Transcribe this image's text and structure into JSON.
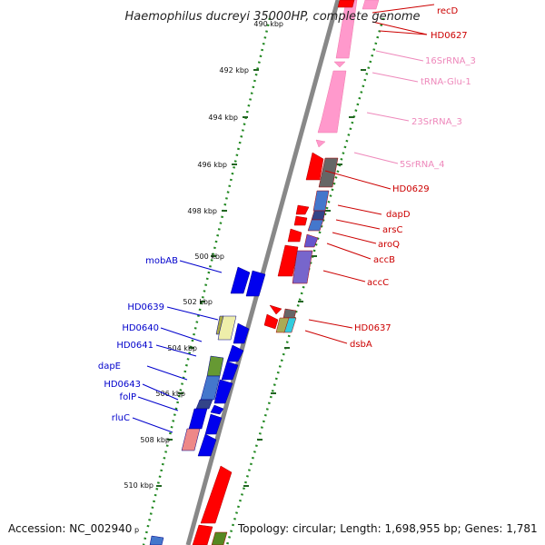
{
  "title": "Haemophilus ducreyi 35000HP, complete genome",
  "footer": {
    "accession": "Accession: NC_002940",
    "accession_tail": "p",
    "topology": "Topology: circular; Length: 1,698,955 bp; Genes: 1,781"
  },
  "ticks": [
    {
      "label": "490 kbp"
    },
    {
      "label": "492 kbp"
    },
    {
      "label": "494 kbp"
    },
    {
      "label": "496 kbp"
    },
    {
      "label": "498 kbp"
    },
    {
      "label": "500 kbp"
    },
    {
      "label": "502 kbp"
    },
    {
      "label": "504 kbp"
    },
    {
      "label": "506 kbp"
    },
    {
      "label": "508 kbp"
    },
    {
      "label": "510 kbp"
    }
  ],
  "right_labels": [
    {
      "text": "recD",
      "type": "cds"
    },
    {
      "text": "HD0627",
      "type": "cds"
    },
    {
      "text": "16SrRNA_3",
      "type": "rna"
    },
    {
      "text": "tRNA-Glu-1",
      "type": "rna"
    },
    {
      "text": "23SrRNA_3",
      "type": "rna"
    },
    {
      "text": "5SrRNA_4",
      "type": "rna"
    },
    {
      "text": "HD0629",
      "type": "cds"
    },
    {
      "text": "dapD",
      "type": "cds"
    },
    {
      "text": "arsC",
      "type": "cds"
    },
    {
      "text": "aroQ",
      "type": "cds"
    },
    {
      "text": "accB",
      "type": "cds"
    },
    {
      "text": "accC",
      "type": "cds"
    },
    {
      "text": "HD0637",
      "type": "cds"
    },
    {
      "text": "dsbA",
      "type": "cds"
    }
  ],
  "left_labels": [
    {
      "text": "mobAB"
    },
    {
      "text": "HD0639"
    },
    {
      "text": "HD0640"
    },
    {
      "text": "HD0641"
    },
    {
      "text": "dapE"
    },
    {
      "text": "HD0643"
    },
    {
      "text": "folP"
    },
    {
      "text": "rluC"
    }
  ],
  "colors": {
    "forward_cds": "#ff0000",
    "reverse_cds": "#0000ee",
    "rna": "#ff99cc",
    "backbone": "#888888",
    "tick_dots": "#228822",
    "right_label": "#cc0000",
    "rna_label": "#ee88bb",
    "left_label": "#0000cc"
  }
}
